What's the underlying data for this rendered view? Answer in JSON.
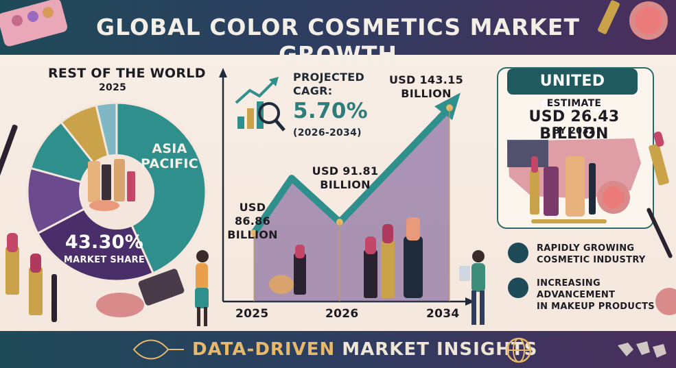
{
  "title": "GLOBAL COLOR COSMETICS MARKET GROWTH",
  "footer": {
    "prefix": "DATA-DRIVEN",
    "suffix": " MARKET INSIGHTS"
  },
  "pie": {
    "row_label": "REST OF THE WORLD",
    "year": "2025",
    "ap_label_line1": "ASIA",
    "ap_label_line2": "PACIFIC",
    "share_pct": "43.30%",
    "share_label": "MARKET SHARE"
  },
  "cagr": {
    "label_line1": "PROJECTED",
    "label_line2": "CAGR:",
    "value": "5.70%",
    "period": "(2026-2034)"
  },
  "value_labels": {
    "v2025_line1": "USD 86.86",
    "v2025_line2": "BILLION",
    "v2026_line1": "USD 91.81",
    "v2026_line2": "BILLION",
    "v2034_line1": "USD 143.15",
    "v2034_line2": "BILLION"
  },
  "us": {
    "title": "UNITED STATES",
    "estimate_label": "ESTIMATE",
    "value": "USD 26.43 BILLION",
    "by_year": "BY 2032"
  },
  "features": [
    {
      "line1": "RAPIDLY GROWING",
      "line2": "COSMETIC INDUSTRY"
    },
    {
      "line1": "INCREASING ADVANCEMENT",
      "line2": "IN MAKEUP PRODUCTS"
    }
  ],
  "colors": {
    "teal": "#2f8f8c",
    "dark_teal": "#1f5b5e",
    "purple": "#4a2e6a",
    "violet": "#6b4a8e",
    "gold": "#c9a24a",
    "light_blue": "#7fb8c4",
    "navy": "#1f4a58"
  },
  "chart_data": [
    {
      "type": "line",
      "x": [
        "2025",
        "2026",
        "2034"
      ],
      "series": [
        {
          "values": [
            86.86,
            91.81,
            143.15
          ]
        }
      ],
      "title": "",
      "xlabel": "",
      "ylabel": "",
      "value_unit": "USD billion"
    },
    {
      "type": "pie",
      "slices": [
        {
          "label": "ASIA PACIFIC",
          "value": 43.3,
          "color": "#2f8f8c"
        },
        {
          "value": 24,
          "color": "#4a2e6a"
        },
        {
          "value": 12,
          "color": "#6b4a8e"
        },
        {
          "value": 10,
          "color": "#2f8f8c"
        },
        {
          "value": 7,
          "color": "#c9a24a"
        },
        {
          "value": 3.7,
          "color": "#7fb8c4"
        }
      ],
      "legend": "none"
    }
  ]
}
